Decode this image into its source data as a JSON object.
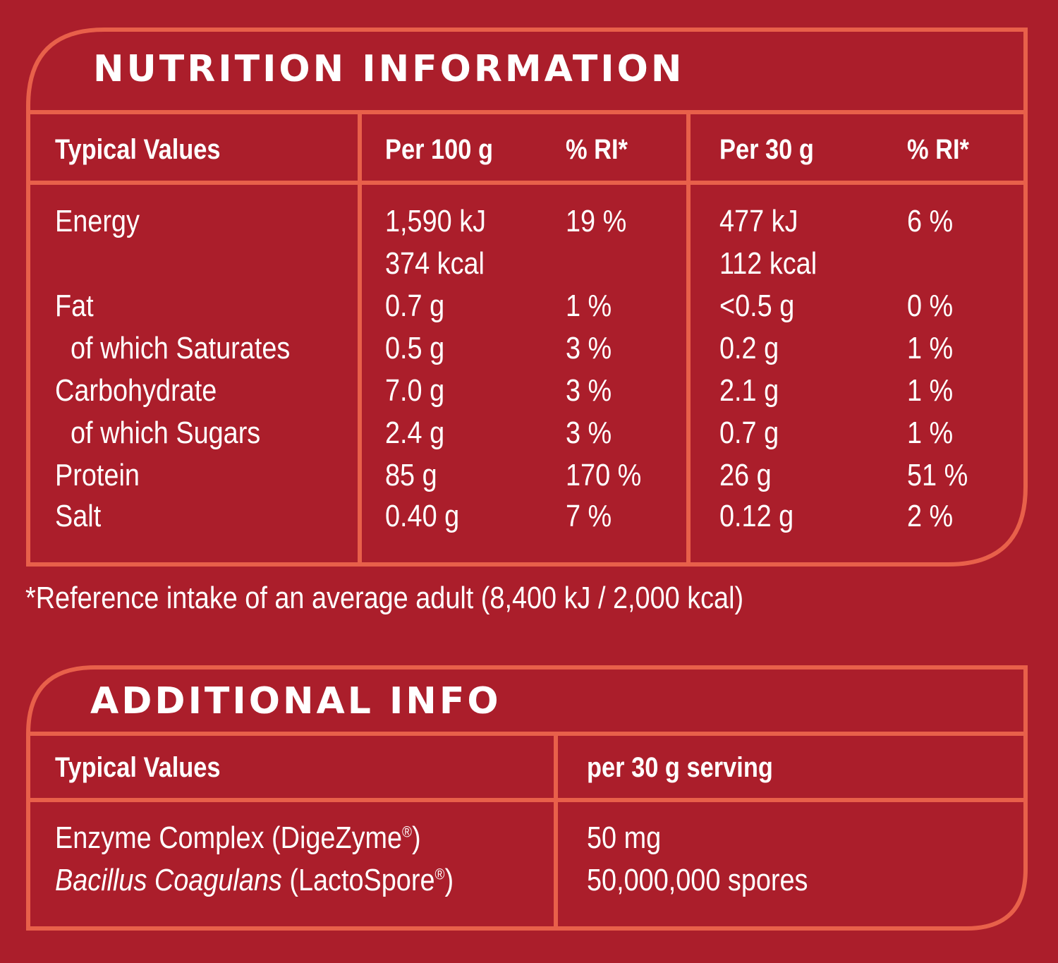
{
  "colors": {
    "background": "#ab1e2b",
    "border": "#e8604a",
    "text": "#ffffff"
  },
  "nutrition": {
    "title": "NUTRITION INFORMATION",
    "headers": {
      "typical": "Typical Values",
      "per100": "Per 100 g",
      "ri100": "% RI*",
      "per30": "Per 30 g",
      "ri30": "% RI*"
    },
    "rows": [
      {
        "name": "Energy",
        "per100": "1,590 kJ",
        "per100_2": "374 kcal",
        "ri100": "19 %",
        "per30": "477 kJ",
        "per30_2": "112 kcal",
        "ri30": "6 %"
      },
      {
        "name": "Fat",
        "per100": "0.7 g",
        "ri100": "1 %",
        "per30": "<0.5 g",
        "ri30": "0 %"
      },
      {
        "name": "of which Saturates",
        "per100": "0.5 g",
        "ri100": "3 %",
        "per30": "0.2 g",
        "ri30": "1 %"
      },
      {
        "name": "Carbohydrate",
        "per100": "7.0 g",
        "ri100": "3 %",
        "per30": "2.1 g",
        "ri30": "1 %"
      },
      {
        "name": "of which Sugars",
        "per100": "2.4 g",
        "ri100": "3 %",
        "per30": "0.7 g",
        "ri30": "1 %"
      },
      {
        "name": "Protein",
        "per100": "85 g",
        "ri100": "170 %",
        "per30": "26 g",
        "ri30": "51 %"
      },
      {
        "name": "Salt",
        "per100": "0.40 g",
        "ri100": "7 %",
        "per30": "0.12 g",
        "ri30": "2 %"
      }
    ],
    "footnote": "*Reference intake of an average adult (8,400 kJ / 2,000 kcal)"
  },
  "additional": {
    "title": "ADDITIONAL INFO",
    "headers": {
      "typical": "Typical Values",
      "serving": "per 30 g serving"
    },
    "rows": [
      {
        "name": "Enzyme Complex (DigeZyme",
        "mark": "®",
        "close": ")",
        "value": "50 mg"
      },
      {
        "name_italic": "Bacillus Coagulans",
        "name": " (LactoSpore",
        "mark": "®",
        "close": ")",
        "value": "50,000,000 spores"
      }
    ]
  }
}
